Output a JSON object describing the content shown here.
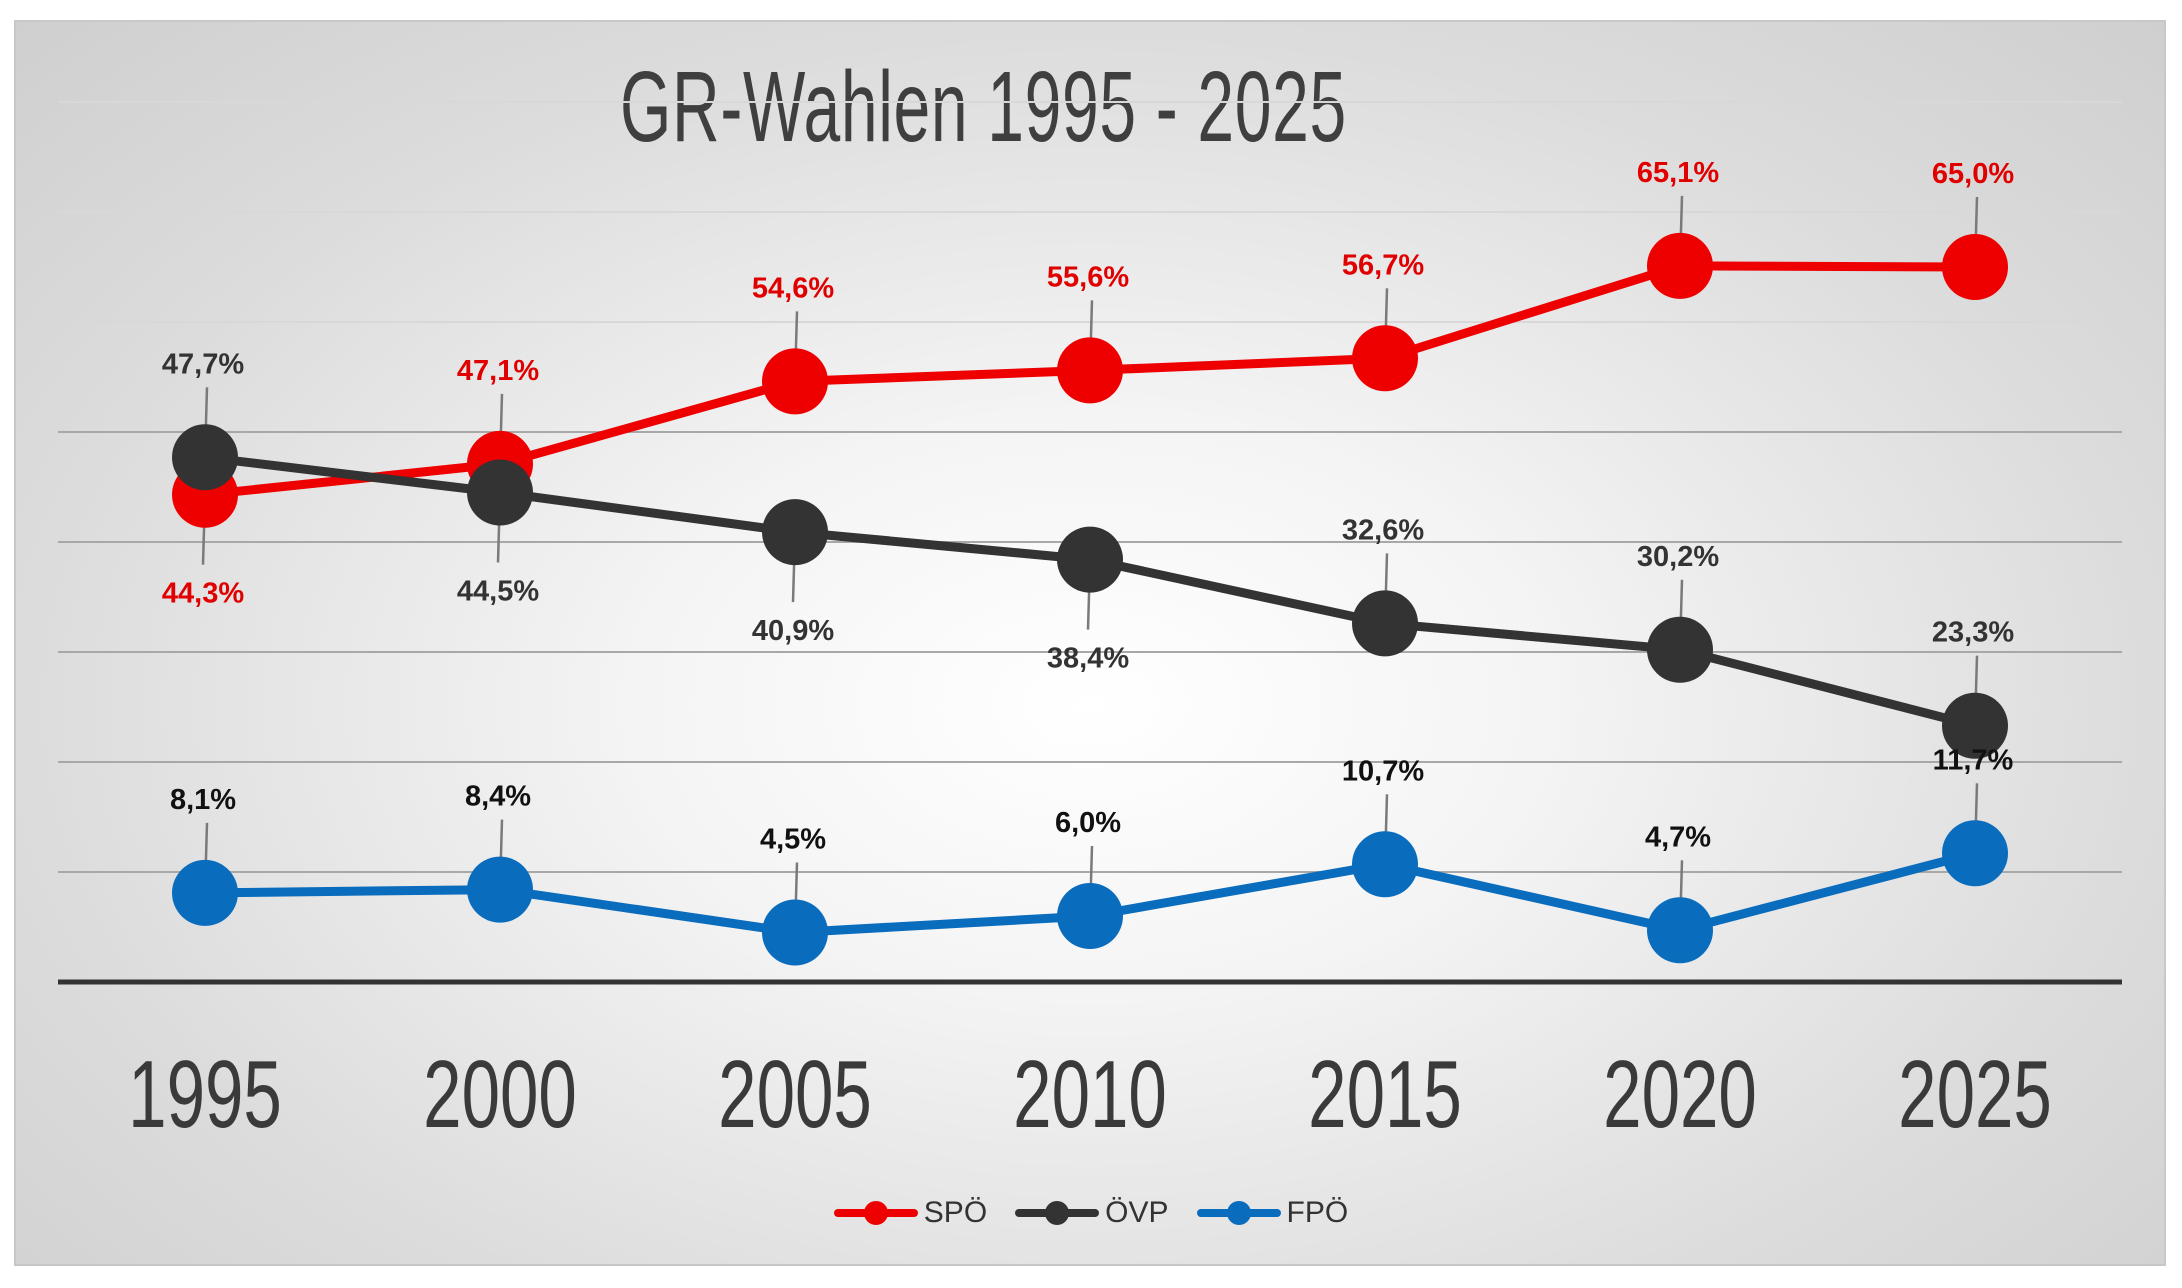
{
  "chart_data": {
    "type": "line",
    "title": "GR-Wahlen 1995 - 2025",
    "categories": [
      "1995",
      "2000",
      "2005",
      "2010",
      "2015",
      "2020",
      "2025"
    ],
    "series": [
      {
        "name": "SPÖ",
        "color": "#ee0000",
        "label_color": "#e00000",
        "values": [
          44.3,
          47.1,
          54.6,
          55.6,
          56.7,
          65.1,
          65.0
        ],
        "labels": [
          "44,3%",
          "47,1%",
          "54,6%",
          "55,6%",
          "56,7%",
          "65,1%",
          "65,0%"
        ],
        "label_pos": [
          "below",
          "above",
          "above",
          "above",
          "above",
          "above",
          "above"
        ]
      },
      {
        "name": "ÖVP",
        "color": "#333333",
        "label_color": "#333333",
        "values": [
          47.7,
          44.5,
          40.9,
          38.4,
          32.6,
          30.2,
          23.3
        ],
        "labels": [
          "47,7%",
          "44,5%",
          "40,9%",
          "38,4%",
          "32,6%",
          "30,2%",
          "23,3%"
        ],
        "label_pos": [
          "above",
          "below",
          "below",
          "below",
          "above",
          "above",
          "above"
        ]
      },
      {
        "name": "FPÖ",
        "color": "#0a6cbd",
        "label_color": "#111111",
        "values": [
          8.1,
          8.4,
          4.5,
          6.0,
          10.7,
          4.7,
          11.7
        ],
        "labels": [
          "8,1%",
          "8,4%",
          "4,5%",
          "6,0%",
          "10,7%",
          "4,7%",
          "11,7%"
        ],
        "label_pos": [
          "above",
          "above",
          "above",
          "above",
          "above",
          "above",
          "above"
        ]
      }
    ],
    "grid": true,
    "legend": "bottom-center"
  }
}
